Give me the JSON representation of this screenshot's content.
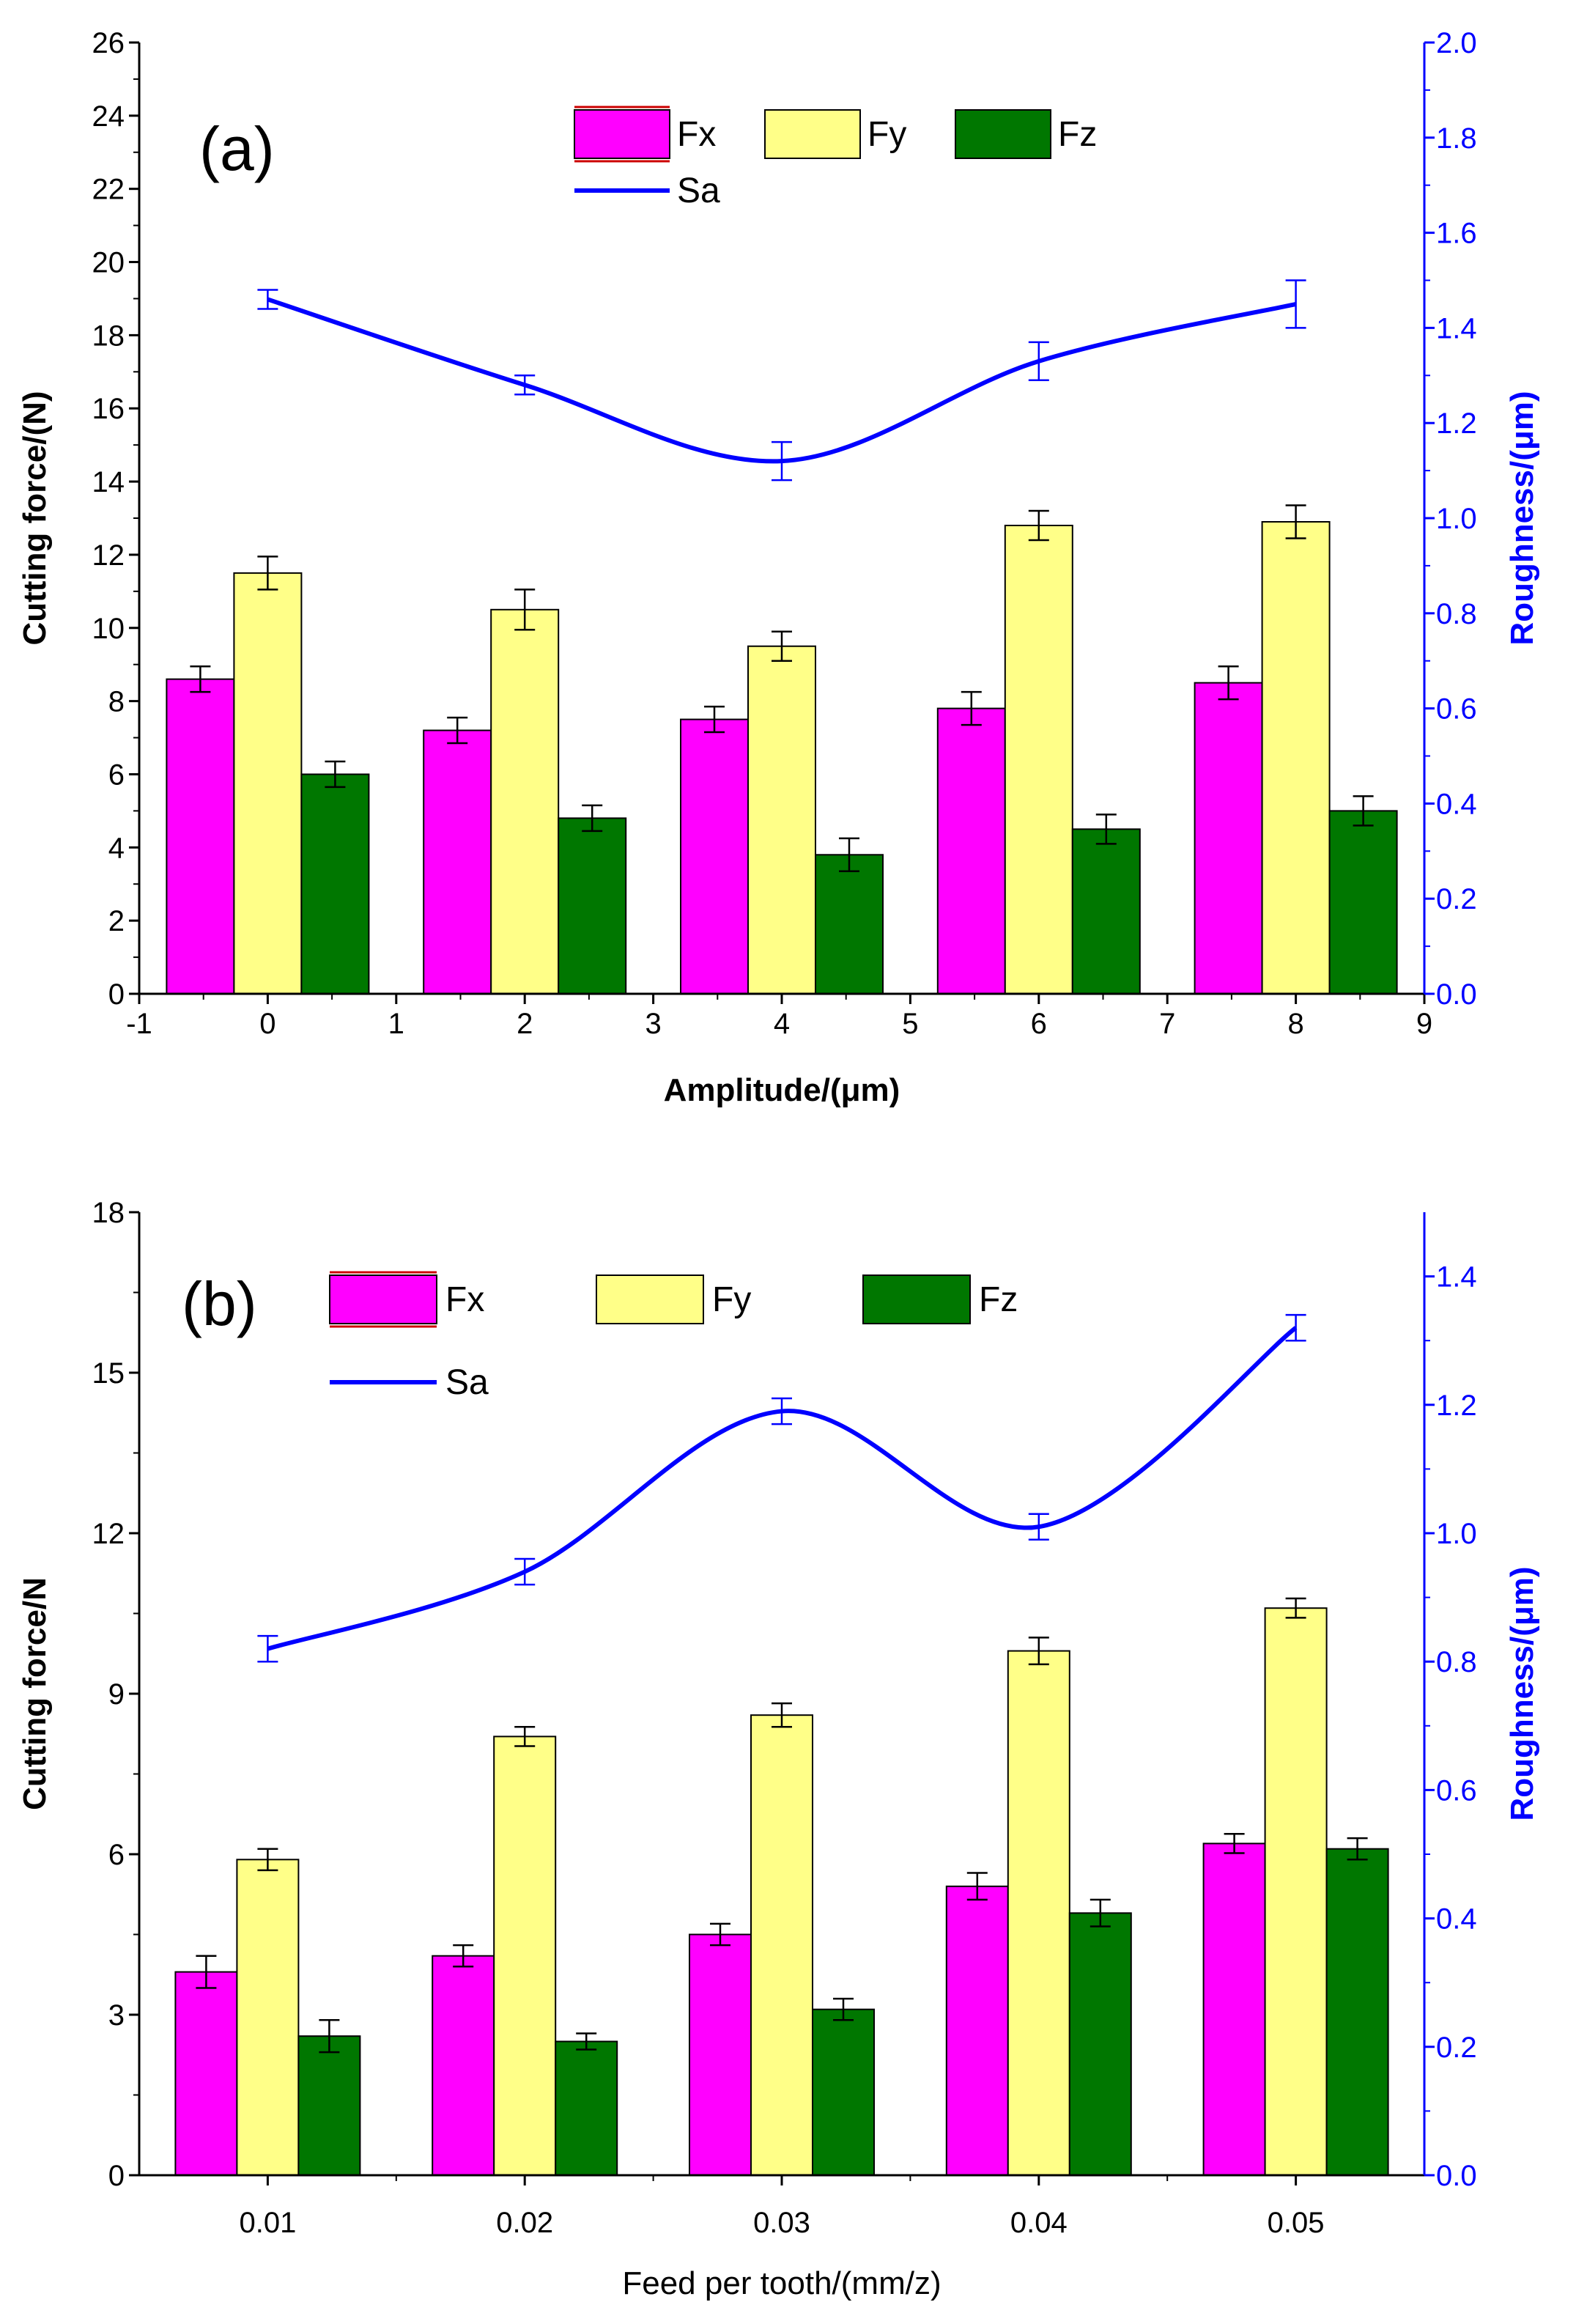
{
  "colors": {
    "fx": "#ff00ff",
    "fy": "#ffff88",
    "fz": "#007700",
    "line": "#0000ff",
    "axis": "#000000",
    "right_axis": "#0000ff"
  },
  "chart_data": [
    {
      "id": "a",
      "type": "bar",
      "panel_label": "(a)",
      "xlabel": "Amplitude/(μm)",
      "ylabel": "Cutting force/(N)",
      "y2label": "Roughness/(μm)",
      "xlim": [
        -1,
        9
      ],
      "ylim": [
        0,
        26
      ],
      "y2lim": [
        0,
        2.0
      ],
      "xticks": [
        -1,
        0,
        1,
        2,
        3,
        4,
        5,
        6,
        7,
        8,
        9
      ],
      "xtick_labels": [
        "-1",
        "0",
        "1",
        "2",
        "3",
        "4",
        "5",
        "6",
        "7",
        "8",
        "9"
      ],
      "yticks": [
        0,
        2,
        4,
        6,
        8,
        10,
        12,
        14,
        16,
        18,
        20,
        22,
        24,
        26
      ],
      "ytick_labels": [
        "0",
        "2",
        "4",
        "6",
        "8",
        "10",
        "12",
        "14",
        "16",
        "18",
        "20",
        "22",
        "24",
        "26"
      ],
      "y2ticks": [
        0,
        0.2,
        0.4,
        0.6,
        0.8,
        1.0,
        1.2,
        1.4,
        1.6,
        1.8,
        2.0
      ],
      "y2tick_labels": [
        "0.0",
        "0.2",
        "0.4",
        "0.6",
        "0.8",
        "1.0",
        "1.2",
        "1.4",
        "1.6",
        "1.8",
        "2.0"
      ],
      "x": [
        0,
        2,
        4,
        6,
        8
      ],
      "series": [
        {
          "name": "Fx",
          "key": "fx",
          "values": [
            8.6,
            7.2,
            7.5,
            7.8,
            8.5
          ],
          "errors": [
            0.35,
            0.35,
            0.35,
            0.45,
            0.45
          ]
        },
        {
          "name": "Fy",
          "key": "fy",
          "values": [
            11.5,
            10.5,
            9.5,
            12.8,
            12.9
          ],
          "errors": [
            0.45,
            0.55,
            0.4,
            0.4,
            0.45
          ]
        },
        {
          "name": "Fz",
          "key": "fz",
          "values": [
            6.0,
            4.8,
            3.8,
            4.5,
            5.0
          ],
          "errors": [
            0.35,
            0.35,
            0.45,
            0.4,
            0.4
          ]
        }
      ],
      "line": {
        "name": "Sa",
        "axis": "right",
        "values": [
          1.46,
          1.28,
          1.12,
          1.33,
          1.45
        ],
        "errors": [
          0.02,
          0.02,
          0.04,
          0.04,
          0.05
        ]
      },
      "legend_location": "top-center"
    },
    {
      "id": "b",
      "type": "bar",
      "panel_label": "(b)",
      "xlabel": "Feed per tooth/(mm/z)",
      "ylabel": "Cutting force/N",
      "y2label": "Roughness/(μm)",
      "xlim": [
        0.005,
        0.055
      ],
      "ylim": [
        0,
        18
      ],
      "y2lim": [
        0,
        1.5
      ],
      "xticks": [
        0.01,
        0.02,
        0.03,
        0.04,
        0.05
      ],
      "xtick_labels": [
        "0.01",
        "0.02",
        "0.03",
        "0.04",
        "0.05"
      ],
      "yticks": [
        0,
        3,
        6,
        9,
        12,
        15,
        18
      ],
      "ytick_labels": [
        "0",
        "3",
        "6",
        "9",
        "12",
        "15",
        "18"
      ],
      "y2ticks": [
        0,
        0.2,
        0.4,
        0.6,
        0.8,
        1.0,
        1.2,
        1.4
      ],
      "y2tick_labels": [
        "0.0",
        "0.2",
        "0.4",
        "0.6",
        "0.8",
        "1.0",
        "1.2",
        "1.4"
      ],
      "x": [
        0.01,
        0.02,
        0.03,
        0.04,
        0.05
      ],
      "series": [
        {
          "name": "Fx",
          "key": "fx",
          "values": [
            3.8,
            4.1,
            4.5,
            5.4,
            6.2
          ],
          "errors": [
            0.3,
            0.2,
            0.2,
            0.25,
            0.18
          ]
        },
        {
          "name": "Fy",
          "key": "fy",
          "values": [
            5.9,
            8.2,
            8.6,
            9.8,
            10.6
          ],
          "errors": [
            0.2,
            0.18,
            0.22,
            0.25,
            0.18
          ]
        },
        {
          "name": "Fz",
          "key": "fz",
          "values": [
            2.6,
            2.5,
            3.1,
            4.9,
            6.1
          ],
          "errors": [
            0.3,
            0.15,
            0.2,
            0.25,
            0.2
          ]
        }
      ],
      "line": {
        "name": "Sa",
        "axis": "right",
        "values": [
          0.82,
          0.94,
          1.19,
          1.01,
          1.32
        ],
        "errors": [
          0.02,
          0.02,
          0.02,
          0.02,
          0.02
        ]
      },
      "legend_location": "top-center"
    }
  ]
}
